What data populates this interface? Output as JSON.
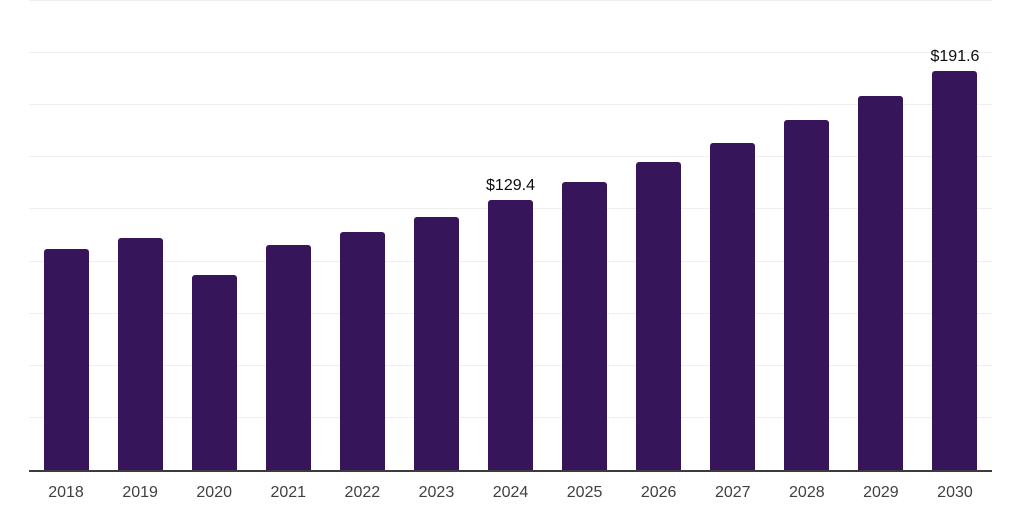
{
  "chart_data": {
    "type": "bar",
    "title": "",
    "xlabel": "",
    "ylabel": "",
    "categories": [
      "2018",
      "2019",
      "2020",
      "2021",
      "2022",
      "2023",
      "2024",
      "2025",
      "2026",
      "2027",
      "2028",
      "2029",
      "2030"
    ],
    "values": [
      105.8,
      111.5,
      93.4,
      107.9,
      114.4,
      121.3,
      129.4,
      138.3,
      147.6,
      157.1,
      168.1,
      179.6,
      191.6
    ],
    "value_labels": [
      "",
      "",
      "",
      "",
      "",
      "",
      "$129.4",
      "",
      "",
      "",
      "",
      "",
      "$191.6"
    ],
    "ylim": [
      0,
      225
    ],
    "grid_step": 25,
    "grid": "horizontal",
    "legend": "none"
  },
  "colors": {
    "background": "#ffffff",
    "bar": "#37155a",
    "gridline": "#efefef",
    "axis_line": "#3b3b3b",
    "tick_label": "#404040",
    "value_label": "#0d0d0d"
  }
}
